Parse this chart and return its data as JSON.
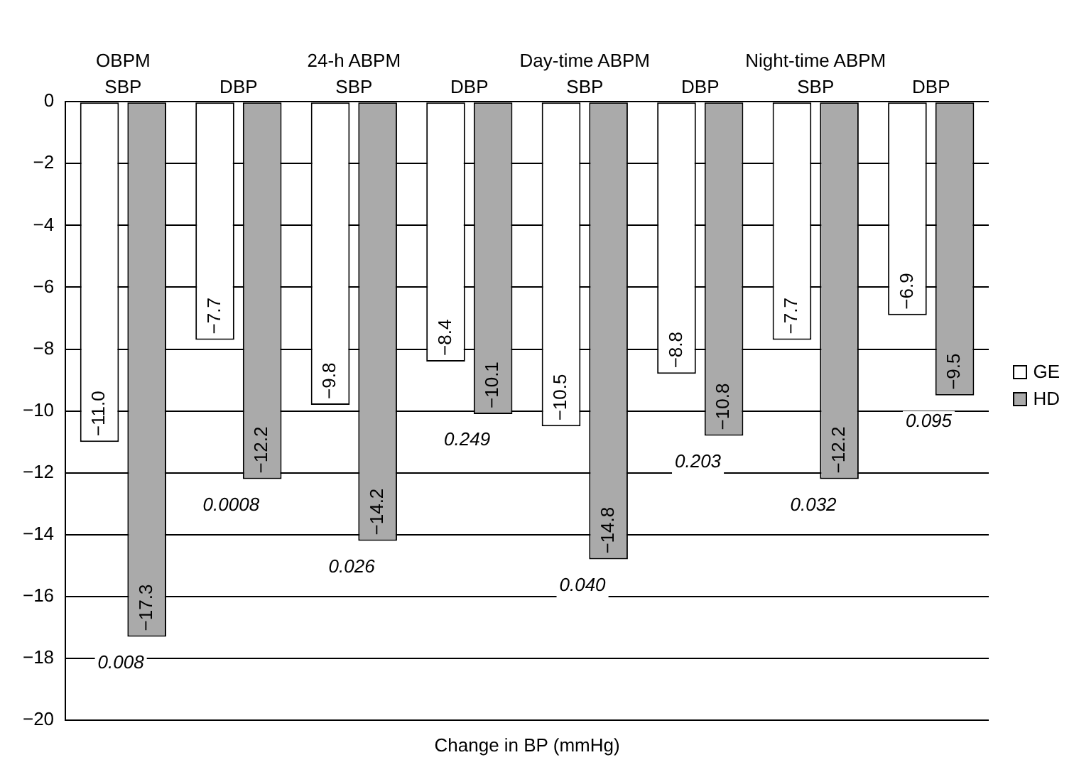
{
  "chart_data": {
    "type": "bar",
    "xlabel": "Change in BP (mmHg)",
    "categories": [
      "SBP",
      "DBP",
      "SBP",
      "DBP",
      "SBP",
      "DBP",
      "SBP",
      "DBP"
    ],
    "series": [
      {
        "name": "GE",
        "color": "#ffffff",
        "values": [
          -11.0,
          -7.7,
          -9.8,
          -8.4,
          -10.5,
          -8.8,
          -7.7,
          -6.9
        ],
        "value_labels": [
          "−11.0",
          "−7.7",
          "−9.8",
          "−8.4",
          "−10.5",
          "−8.8",
          "−7.7",
          "−6.9"
        ]
      },
      {
        "name": "HD",
        "color": "#aaaaaa",
        "values": [
          -17.3,
          -12.2,
          -14.2,
          -10.1,
          -14.8,
          -10.8,
          -12.2,
          -9.5
        ],
        "value_labels": [
          "−17.3",
          "−12.2",
          "−14.2",
          "−10.1",
          "−14.8",
          "−10.8",
          "−12.2",
          "−9.5"
        ]
      }
    ],
    "ylim": [
      -20,
      0
    ],
    "yticks": [
      {
        "value": 0,
        "label": "0"
      },
      {
        "value": -2,
        "label": "−2"
      },
      {
        "value": -4,
        "label": "−4"
      },
      {
        "value": -6,
        "label": "−6"
      },
      {
        "value": -8,
        "label": "−8"
      },
      {
        "value": -10,
        "label": "−10"
      },
      {
        "value": -12,
        "label": "−12"
      },
      {
        "value": -14,
        "label": "−14"
      },
      {
        "value": -16,
        "label": "−16"
      },
      {
        "value": -18,
        "label": "−18"
      },
      {
        "value": -20,
        "label": "−20"
      }
    ],
    "annotations": [
      "OBPM",
      "24-h ABPM",
      "Day-time ABPM",
      "Night-time ABPM",
      "0.008",
      "0.0008",
      "0.026",
      "0.249",
      "0.040",
      "0.203",
      "0.032",
      "0.095"
    ],
    "grid": "y",
    "legend": "right"
  }
}
